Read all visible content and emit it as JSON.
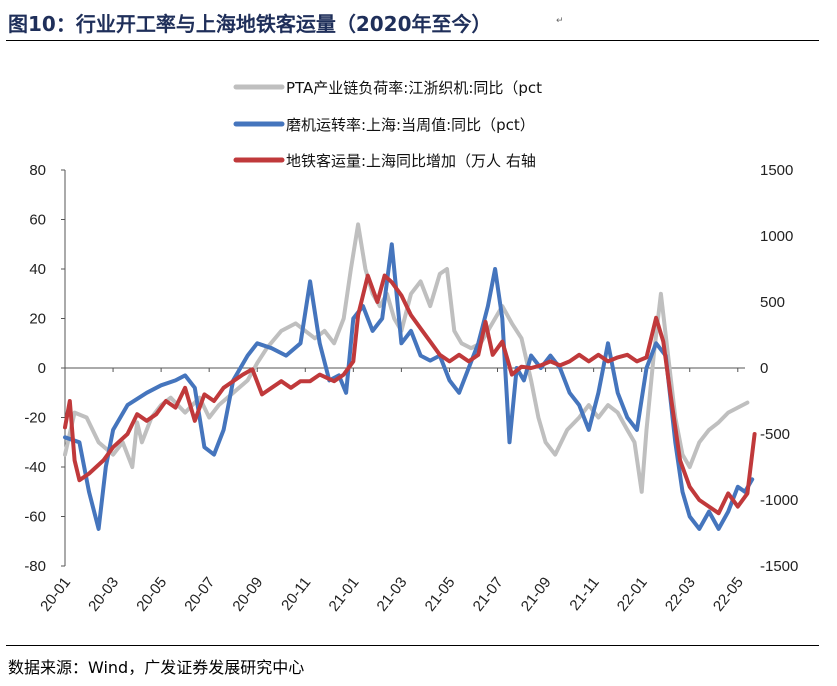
{
  "header": {
    "title": "图10：行业开工率与上海地铁客运量（2020年至今）"
  },
  "footer": {
    "source": "数据来源：Wind，广发证券发展研究中心"
  },
  "glyphs": {
    "para": "↵"
  },
  "chart_data": {
    "type": "line",
    "title": "图10：行业开工率与上海地铁客运量（2020年至今）",
    "x": [
      "20-01",
      "20-03",
      "20-05",
      "20-07",
      "20-09",
      "20-11",
      "21-01",
      "21-03",
      "21-05",
      "21-07",
      "21-09",
      "21-11",
      "22-01",
      "22-03",
      "22-05"
    ],
    "x_ticks": [
      "20-01",
      "20-03",
      "20-05",
      "20-07",
      "20-09",
      "20-11",
      "21-01",
      "21-03",
      "21-05",
      "21-07",
      "21-09",
      "21-11",
      "22-01",
      "22-03",
      "22-05"
    ],
    "y_left": {
      "range": [
        -80,
        80
      ],
      "ticks": [
        "80",
        "60",
        "40",
        "20",
        "0",
        "-20",
        "-40",
        "-60",
        "-80"
      ]
    },
    "y_right": {
      "range": [
        -1500,
        1500
      ],
      "ticks": [
        "1500",
        "1000",
        "500",
        "0",
        "-500",
        "-1000",
        "-1500"
      ]
    },
    "legend_position": "top",
    "series": [
      {
        "name": "PTA产业链负荷率:江浙织机:同比（pct",
        "axis": "left",
        "color": "#bfbfbf",
        "points": [
          [
            0.0,
            -35
          ],
          [
            0.2,
            -18
          ],
          [
            0.45,
            -20
          ],
          [
            0.7,
            -30
          ],
          [
            1.0,
            -35
          ],
          [
            1.2,
            -30
          ],
          [
            1.4,
            -40
          ],
          [
            1.5,
            -22
          ],
          [
            1.6,
            -30
          ],
          [
            1.8,
            -20
          ],
          [
            2.0,
            -15
          ],
          [
            2.2,
            -12
          ],
          [
            2.5,
            -18
          ],
          [
            2.8,
            -12
          ],
          [
            3.0,
            -20
          ],
          [
            3.2,
            -15
          ],
          [
            3.5,
            -10
          ],
          [
            3.8,
            -5
          ],
          [
            4.0,
            2
          ],
          [
            4.2,
            8
          ],
          [
            4.5,
            15
          ],
          [
            4.8,
            18
          ],
          [
            5.0,
            15
          ],
          [
            5.2,
            12
          ],
          [
            5.4,
            15
          ],
          [
            5.6,
            10
          ],
          [
            5.8,
            20
          ],
          [
            5.95,
            40
          ],
          [
            6.1,
            58
          ],
          [
            6.25,
            40
          ],
          [
            6.4,
            30
          ],
          [
            6.55,
            25
          ],
          [
            6.7,
            30
          ],
          [
            6.85,
            20
          ],
          [
            7.0,
            15
          ],
          [
            7.2,
            30
          ],
          [
            7.4,
            35
          ],
          [
            7.6,
            25
          ],
          [
            7.8,
            38
          ],
          [
            7.95,
            40
          ],
          [
            8.1,
            15
          ],
          [
            8.25,
            10
          ],
          [
            8.45,
            8
          ],
          [
            8.65,
            10
          ],
          [
            8.8,
            15
          ],
          [
            8.95,
            20
          ],
          [
            9.1,
            25
          ],
          [
            9.3,
            18
          ],
          [
            9.5,
            12
          ],
          [
            9.7,
            -5
          ],
          [
            9.85,
            -20
          ],
          [
            10.0,
            -30
          ],
          [
            10.2,
            -35
          ],
          [
            10.45,
            -25
          ],
          [
            10.7,
            -20
          ],
          [
            10.9,
            -15
          ],
          [
            11.1,
            -20
          ],
          [
            11.3,
            -15
          ],
          [
            11.5,
            -18
          ],
          [
            11.7,
            -25
          ],
          [
            11.85,
            -30
          ],
          [
            12.0,
            -50
          ],
          [
            12.1,
            -25
          ],
          [
            12.25,
            5
          ],
          [
            12.4,
            30
          ],
          [
            12.55,
            5
          ],
          [
            12.7,
            -20
          ],
          [
            12.85,
            -35
          ],
          [
            13.0,
            -40
          ],
          [
            13.2,
            -30
          ],
          [
            13.4,
            -25
          ],
          [
            13.6,
            -22
          ],
          [
            13.8,
            -18
          ],
          [
            14.0,
            -16
          ],
          [
            14.2,
            -14
          ]
        ]
      },
      {
        "name": "磨机运转率:上海:当周值:同比（pct）",
        "axis": "left",
        "color": "#4575bd",
        "points": [
          [
            0.0,
            -28
          ],
          [
            0.3,
            -30
          ],
          [
            0.5,
            -50
          ],
          [
            0.7,
            -65
          ],
          [
            0.85,
            -40
          ],
          [
            1.0,
            -25
          ],
          [
            1.3,
            -15
          ],
          [
            1.7,
            -10
          ],
          [
            2.0,
            -7
          ],
          [
            2.3,
            -5
          ],
          [
            2.5,
            -3
          ],
          [
            2.7,
            -8
          ],
          [
            2.9,
            -32
          ],
          [
            3.1,
            -35
          ],
          [
            3.3,
            -25
          ],
          [
            3.5,
            -5
          ],
          [
            3.8,
            5
          ],
          [
            4.0,
            10
          ],
          [
            4.3,
            8
          ],
          [
            4.6,
            5
          ],
          [
            4.9,
            10
          ],
          [
            5.1,
            35
          ],
          [
            5.3,
            10
          ],
          [
            5.5,
            -5
          ],
          [
            5.7,
            -3
          ],
          [
            5.85,
            -10
          ],
          [
            6.0,
            20
          ],
          [
            6.2,
            25
          ],
          [
            6.4,
            15
          ],
          [
            6.6,
            20
          ],
          [
            6.8,
            50
          ],
          [
            7.0,
            10
          ],
          [
            7.2,
            15
          ],
          [
            7.4,
            5
          ],
          [
            7.6,
            3
          ],
          [
            7.8,
            5
          ],
          [
            8.0,
            -5
          ],
          [
            8.2,
            -10
          ],
          [
            8.4,
            0
          ],
          [
            8.6,
            10
          ],
          [
            8.8,
            25
          ],
          [
            8.95,
            40
          ],
          [
            9.1,
            20
          ],
          [
            9.25,
            -30
          ],
          [
            9.4,
            0
          ],
          [
            9.55,
            -5
          ],
          [
            9.7,
            5
          ],
          [
            9.9,
            0
          ],
          [
            10.1,
            5
          ],
          [
            10.3,
            0
          ],
          [
            10.5,
            -10
          ],
          [
            10.7,
            -15
          ],
          [
            10.9,
            -25
          ],
          [
            11.1,
            -10
          ],
          [
            11.3,
            10
          ],
          [
            11.5,
            -10
          ],
          [
            11.7,
            -20
          ],
          [
            11.9,
            -25
          ],
          [
            12.1,
            0
          ],
          [
            12.3,
            10
          ],
          [
            12.5,
            5
          ],
          [
            12.7,
            -30
          ],
          [
            12.85,
            -50
          ],
          [
            13.0,
            -60
          ],
          [
            13.2,
            -65
          ],
          [
            13.4,
            -58
          ],
          [
            13.6,
            -65
          ],
          [
            13.8,
            -58
          ],
          [
            14.0,
            -48
          ],
          [
            14.15,
            -50
          ],
          [
            14.3,
            -45
          ]
        ]
      },
      {
        "name": "地铁客运量:上海同比增加（万人 右轴",
        "axis": "right",
        "color": "#c0393b",
        "points": [
          [
            0.0,
            -450
          ],
          [
            0.1,
            -250
          ],
          [
            0.2,
            -700
          ],
          [
            0.3,
            -850
          ],
          [
            0.5,
            -800
          ],
          [
            0.8,
            -700
          ],
          [
            1.0,
            -600
          ],
          [
            1.3,
            -500
          ],
          [
            1.5,
            -350
          ],
          [
            1.7,
            -400
          ],
          [
            1.9,
            -350
          ],
          [
            2.1,
            -250
          ],
          [
            2.3,
            -300
          ],
          [
            2.5,
            -150
          ],
          [
            2.7,
            -400
          ],
          [
            2.9,
            -200
          ],
          [
            3.1,
            -250
          ],
          [
            3.3,
            -150
          ],
          [
            3.5,
            -100
          ],
          [
            3.7,
            -50
          ],
          [
            3.9,
            -10
          ],
          [
            4.1,
            -200
          ],
          [
            4.3,
            -150
          ],
          [
            4.5,
            -100
          ],
          [
            4.7,
            -150
          ],
          [
            4.9,
            -100
          ],
          [
            5.1,
            -100
          ],
          [
            5.3,
            -50
          ],
          [
            5.6,
            -100
          ],
          [
            5.8,
            -50
          ],
          [
            6.0,
            50
          ],
          [
            6.1,
            400
          ],
          [
            6.3,
            700
          ],
          [
            6.5,
            500
          ],
          [
            6.65,
            700
          ],
          [
            6.8,
            650
          ],
          [
            7.0,
            550
          ],
          [
            7.2,
            400
          ],
          [
            7.4,
            300
          ],
          [
            7.6,
            200
          ],
          [
            7.8,
            100
          ],
          [
            8.0,
            50
          ],
          [
            8.2,
            100
          ],
          [
            8.4,
            50
          ],
          [
            8.6,
            100
          ],
          [
            8.75,
            350
          ],
          [
            8.9,
            100
          ],
          [
            9.1,
            200
          ],
          [
            9.3,
            -50
          ],
          [
            9.5,
            10
          ],
          [
            9.7,
            0
          ],
          [
            9.9,
            20
          ],
          [
            10.1,
            50
          ],
          [
            10.3,
            20
          ],
          [
            10.5,
            50
          ],
          [
            10.7,
            100
          ],
          [
            10.9,
            50
          ],
          [
            11.1,
            100
          ],
          [
            11.3,
            50
          ],
          [
            11.5,
            80
          ],
          [
            11.7,
            100
          ],
          [
            11.9,
            50
          ],
          [
            12.1,
            80
          ],
          [
            12.3,
            380
          ],
          [
            12.45,
            200
          ],
          [
            12.6,
            -200
          ],
          [
            12.8,
            -700
          ],
          [
            13.0,
            -900
          ],
          [
            13.2,
            -1000
          ],
          [
            13.4,
            -1050
          ],
          [
            13.6,
            -1100
          ],
          [
            13.8,
            -950
          ],
          [
            14.0,
            -1050
          ],
          [
            14.2,
            -950
          ],
          [
            14.35,
            -500
          ]
        ]
      }
    ]
  }
}
